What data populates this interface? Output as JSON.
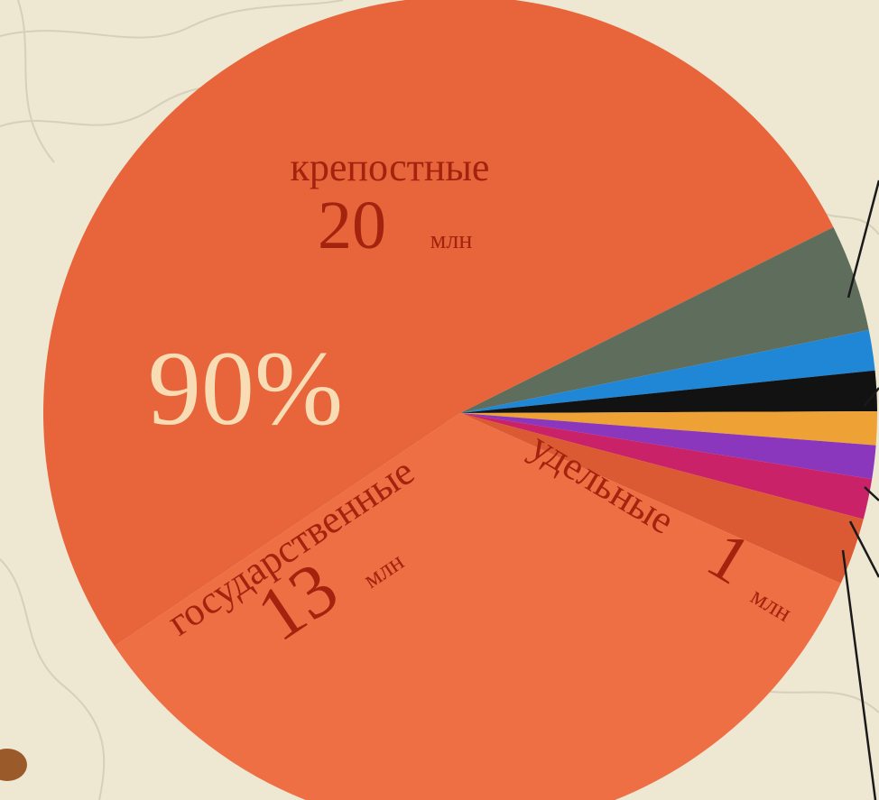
{
  "chart_data": {
    "type": "pie",
    "categories": [
      "крепостные",
      null,
      null,
      null,
      null,
      null,
      null,
      "удельные",
      "государственные"
    ],
    "values": [
      20,
      1.6,
      0.6,
      0.6,
      0.5,
      0.5,
      0.6,
      1,
      13
    ],
    "colors": [
      "#e8643a",
      "#5f6e5c",
      "#2087d6",
      "#121212",
      "#eea236",
      "#8b37bd",
      "#c92269",
      "#dc5a33",
      "#ef6f45"
    ],
    "unit": "млн",
    "annotation": "90%"
  }
}
